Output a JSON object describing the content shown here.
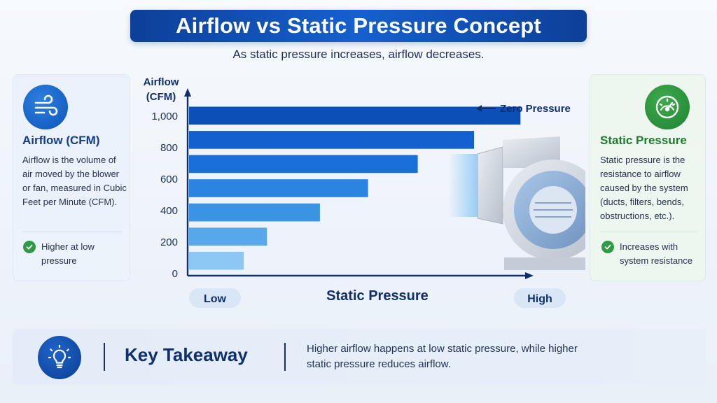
{
  "title": "Airflow vs Static Pressure Concept",
  "subtitle": "As static pressure increases, airflow decreases.",
  "left_card": {
    "icon": "wind-icon",
    "title": "Airflow (CFM)",
    "description": "Airflow is the volume of air moved by the blower or fan, measured in Cubic Feet per Minute (CFM).",
    "note": "Higher at low pressure"
  },
  "right_card": {
    "icon": "gauge-icon",
    "title": "Static Pressure",
    "description": "Static pressure is the resistance to airflow caused by the system (ducts, filters, bends, obstructions, etc.).",
    "note": "Increases with system resistance"
  },
  "chart_data": {
    "type": "bar",
    "orientation": "horizontal",
    "ylabel": "Airflow\n(CFM)",
    "xlabel": "Static Pressure",
    "x_low_label": "Low",
    "x_high_label": "High",
    "y_ticks": [
      "1,000",
      "800",
      "600",
      "400",
      "200",
      "0"
    ],
    "ylim": [
      0,
      1000
    ],
    "values": [
      1000,
      860,
      690,
      540,
      395,
      235,
      165
    ],
    "annotation": "Zero Pressure",
    "colors": [
      "#0c4fb7",
      "#1560cf",
      "#1b6fd8",
      "#2b84df",
      "#3a93e3",
      "#58a7ea",
      "#8cc6f3"
    ]
  },
  "takeaway": {
    "icon": "lightbulb-icon",
    "title": "Key Takeaway",
    "text": "Higher airflow happens at low static pressure, while higher static pressure reduces airflow."
  }
}
